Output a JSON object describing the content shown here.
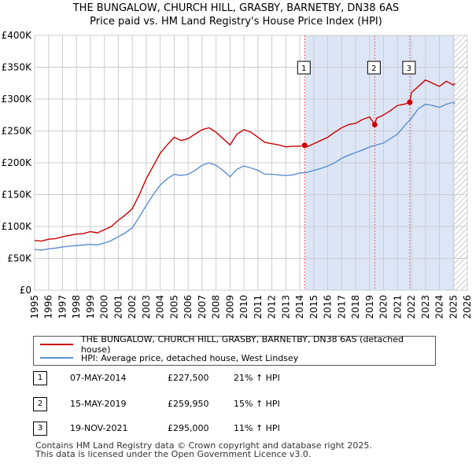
{
  "title_line1": "THE BUNGALOW, CHURCH HILL, GRASBY, BARNETBY, DN38 6AS",
  "title_line2": "Price paid vs. HM Land Registry's House Price Index (HPI)",
  "colors": {
    "property": "#cc0000",
    "hpi": "#5b8fd0",
    "shade": "#dde6f6",
    "marker_line": "#e06060",
    "grid": "#cccccc"
  },
  "legend": {
    "property_label": "THE BUNGALOW, CHURCH HILL, GRASBY, BARNETBY, DN38 6AS (detached house)",
    "hpi_label": "HPI: Average price, detached house, West Lindsey"
  },
  "transactions": [
    {
      "num": "1",
      "date": "07-MAY-2014",
      "price": "£227,500",
      "hpi": "21% ↑ HPI"
    },
    {
      "num": "2",
      "date": "15-MAY-2019",
      "price": "£259,950",
      "hpi": "15% ↑ HPI"
    },
    {
      "num": "3",
      "date": "19-NOV-2021",
      "price": "£295,000",
      "hpi": "11% ↑ HPI"
    }
  ],
  "footer": {
    "line1": "Contains HM Land Registry data © Crown copyright and database right 2025.",
    "line2": "This data is licensed under the Open Government Licence v3.0."
  },
  "chart_data": {
    "type": "line",
    "title": "THE BUNGALOW, CHURCH HILL, GRASBY, BARNETBY, DN38 6AS — Price paid vs. HM Land Registry's House Price Index (HPI)",
    "xlabel": "",
    "ylabel": "",
    "xlim": [
      1995,
      2026
    ],
    "ylim": [
      0,
      400000
    ],
    "x_ticks": [
      1995,
      1996,
      1997,
      1998,
      1999,
      2000,
      2001,
      2002,
      2003,
      2004,
      2005,
      2006,
      2007,
      2008,
      2009,
      2010,
      2011,
      2012,
      2013,
      2014,
      2015,
      2016,
      2017,
      2018,
      2019,
      2020,
      2021,
      2022,
      2023,
      2024,
      2025,
      2026
    ],
    "y_ticks": [
      {
        "value": 0,
        "label": "£0"
      },
      {
        "value": 50000,
        "label": "£50K"
      },
      {
        "value": 100000,
        "label": "£100K"
      },
      {
        "value": 150000,
        "label": "£150K"
      },
      {
        "value": 200000,
        "label": "£200K"
      },
      {
        "value": 250000,
        "label": "£250K"
      },
      {
        "value": 300000,
        "label": "£300K"
      },
      {
        "value": 350000,
        "label": "£350K"
      },
      {
        "value": 400000,
        "label": "£400K"
      }
    ],
    "grid": true,
    "shaded_periods": [
      [
        2014.35,
        2025.1
      ]
    ],
    "hatched_after": 2025.1,
    "series": [
      {
        "name": "THE BUNGALOW, CHURCH HILL, GRASBY, BARNETBY, DN38 6AS (detached house)",
        "x": [
          1995,
          1995.5,
          1996,
          1996.5,
          1997,
          1997.5,
          1998,
          1998.5,
          1999,
          1999.5,
          2000,
          2000.5,
          2001,
          2001.5,
          2002,
          2002.5,
          2003,
          2003.5,
          2004,
          2004.5,
          2005,
          2005.5,
          2006,
          2006.5,
          2007,
          2007.5,
          2008,
          2008.5,
          2009,
          2009.5,
          2010,
          2010.5,
          2011,
          2011.5,
          2012,
          2012.5,
          2013,
          2013.5,
          2014,
          2014.35,
          2014.5,
          2015,
          2015.5,
          2016,
          2016.5,
          2017,
          2017.5,
          2018,
          2018.5,
          2019,
          2019.37,
          2019.5,
          2020,
          2020.5,
          2021,
          2021.5,
          2021.88,
          2022,
          2022.5,
          2023,
          2023.5,
          2024,
          2024.5,
          2025,
          2025.1
        ],
        "values": [
          78000,
          77000,
          80000,
          81000,
          84000,
          86000,
          88000,
          89000,
          92000,
          90000,
          95000,
          100000,
          110000,
          118000,
          128000,
          150000,
          175000,
          195000,
          215000,
          228000,
          240000,
          235000,
          238000,
          245000,
          252000,
          255000,
          248000,
          238000,
          228000,
          245000,
          252000,
          248000,
          240000,
          232000,
          230000,
          228000,
          225000,
          226000,
          226000,
          227500,
          225000,
          230000,
          235000,
          240000,
          248000,
          255000,
          260000,
          262000,
          268000,
          272000,
          259950,
          270000,
          275000,
          282000,
          290000,
          292000,
          295000,
          310000,
          320000,
          330000,
          325000,
          320000,
          328000,
          322000,
          325000
        ]
      },
      {
        "name": "HPI: Average price, detached house, West Lindsey",
        "x": [
          1995,
          1995.5,
          1996,
          1996.5,
          1997,
          1997.5,
          1998,
          1998.5,
          1999,
          1999.5,
          2000,
          2000.5,
          2001,
          2001.5,
          2002,
          2002.5,
          2003,
          2003.5,
          2004,
          2004.5,
          2005,
          2005.5,
          2006,
          2006.5,
          2007,
          2007.5,
          2008,
          2008.5,
          2009,
          2009.5,
          2010,
          2010.5,
          2011,
          2011.5,
          2012,
          2012.5,
          2013,
          2013.5,
          2014,
          2014.5,
          2015,
          2015.5,
          2016,
          2016.5,
          2017,
          2017.5,
          2018,
          2018.5,
          2019,
          2019.5,
          2020,
          2020.5,
          2021,
          2021.5,
          2022,
          2022.5,
          2023,
          2023.5,
          2024,
          2024.5,
          2025,
          2025.1
        ],
        "values": [
          64000,
          63000,
          65000,
          66000,
          68000,
          69000,
          70000,
          71000,
          72000,
          71000,
          74000,
          78000,
          84000,
          90000,
          98000,
          115000,
          133000,
          150000,
          165000,
          175000,
          182000,
          180000,
          182000,
          188000,
          196000,
          200000,
          196000,
          188000,
          178000,
          190000,
          195000,
          192000,
          188000,
          182000,
          182000,
          181000,
          180000,
          181000,
          184000,
          185000,
          188000,
          191000,
          195000,
          200000,
          207000,
          212000,
          216000,
          220000,
          225000,
          228000,
          231000,
          238000,
          245000,
          258000,
          270000,
          285000,
          292000,
          290000,
          287000,
          292000,
          295000,
          292000
        ]
      }
    ],
    "sale_markers": [
      {
        "label": "1",
        "x": 2014.35,
        "value": 227500
      },
      {
        "label": "2",
        "x": 2019.37,
        "value": 259950
      },
      {
        "label": "3",
        "x": 2021.88,
        "value": 295000
      }
    ]
  }
}
